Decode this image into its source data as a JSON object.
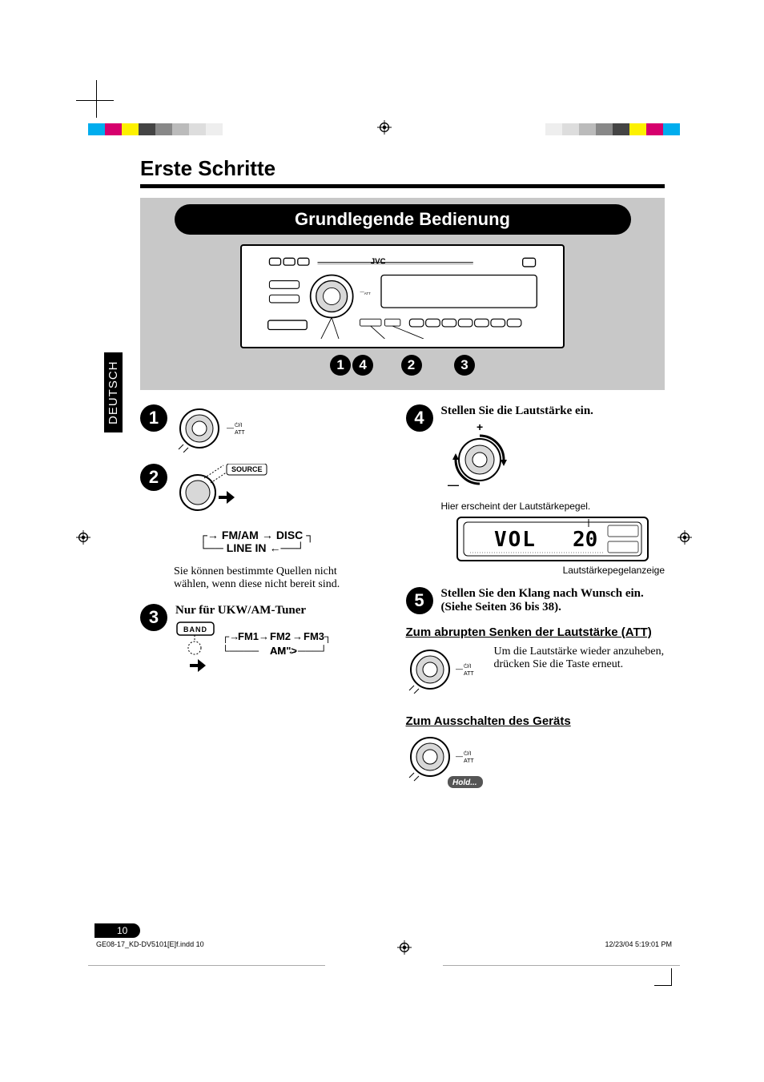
{
  "language_tab": "DEUTSCH",
  "main_title": "Erste Schritte",
  "banner_title": "Grundlegende Bedienung",
  "brand": "JVC",
  "callout_numbers_under_device": [
    "1",
    "4",
    "2",
    "3"
  ],
  "step1": {
    "number": "1",
    "att_label": "ATT"
  },
  "step2": {
    "number": "2",
    "source_label": "SOURCE",
    "flow_labels": {
      "fmam": "FM/AM",
      "disc": "DISC",
      "linein": "LINE IN"
    },
    "note": "Sie können bestimmte Quellen nicht wählen, wenn diese nicht bereit sind."
  },
  "step3": {
    "number": "3",
    "heading": "Nur für UKW/AM-Tuner",
    "band_label": "BAND",
    "flow_labels": {
      "fm1": "FM1",
      "fm2": "FM2",
      "fm3": "FM3",
      "am": "AM"
    }
  },
  "step4": {
    "number": "4",
    "heading": "Stellen Sie die Lautstärke ein.",
    "caption_above": "Hier erscheint der Lautstärkepegel.",
    "display_vol_label": "VOL",
    "display_vol_value": "20",
    "caption_below": "Lautstärkepegelanzeige"
  },
  "step5": {
    "number": "5",
    "text": "Stellen Sie den Klang nach Wunsch ein. (Siehe Seiten 36 bis 38)."
  },
  "att_section": {
    "heading": "Zum abrupten Senken der Lautstärke (ATT)",
    "text": "Um die Lautstärke wieder anzuheben, drücken Sie die Taste erneut.",
    "att_label": "ATT"
  },
  "poweroff_section": {
    "heading": "Zum Ausschalten des Geräts",
    "hold_label": "Hold...",
    "att_label": "ATT"
  },
  "page_number": "10",
  "footer_left": "GE08-17_KD-DV5101[E]f.indd   10",
  "footer_right": "12/23/04   5:19:01 PM",
  "print_bar_colors": [
    "#00adee",
    "#d6006d",
    "#fdf100",
    "#444444",
    "#888888",
    "#bbbbbb",
    "#dddddd",
    "#eeeeee"
  ],
  "print_bar_colors_r": [
    "#eeeeee",
    "#dddddd",
    "#bbbbbb",
    "#888888",
    "#444444",
    "#fdf100",
    "#d6006d",
    "#00adee"
  ]
}
